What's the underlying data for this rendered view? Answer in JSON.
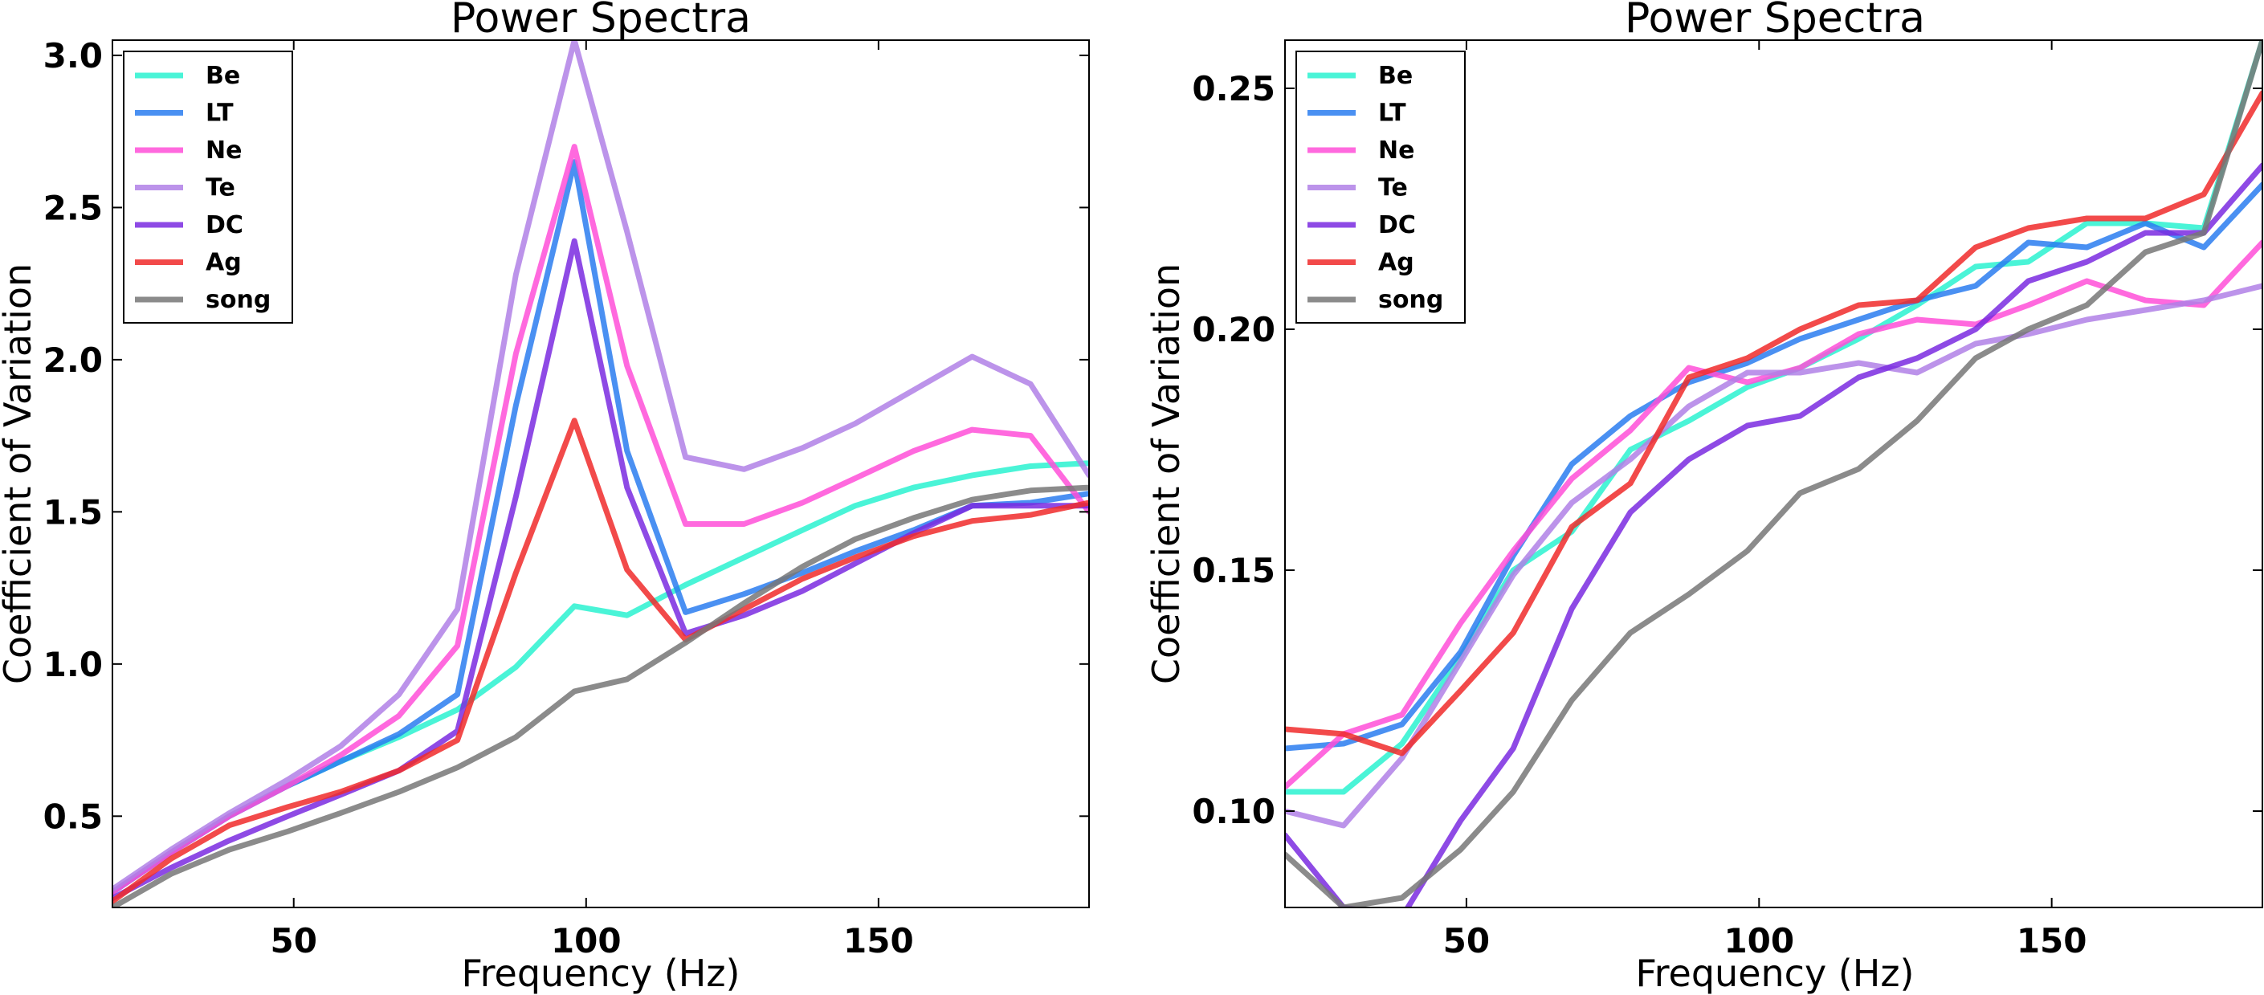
{
  "chart_data": [
    {
      "type": "line",
      "title": "Power Spectra",
      "xlabel": "Frequency (Hz)",
      "ylabel": "Coefficient of Variation",
      "xlim": [
        19,
        186
      ],
      "ylim": [
        0.2,
        3.05
      ],
      "xticks": [
        50,
        100,
        150
      ],
      "xtick_labels": [
        "50",
        "100",
        "150"
      ],
      "yticks": [
        0.5,
        1.0,
        1.5,
        2.0,
        2.5,
        3.0
      ],
      "ytick_labels": [
        "0.5",
        "1.0",
        "1.5",
        "2.0",
        "2.5",
        "3.0"
      ],
      "legend_position": "top-left",
      "x": [
        19,
        29,
        39,
        49,
        58,
        68,
        78,
        88,
        98,
        107,
        117,
        127,
        137,
        146,
        156,
        166,
        176,
        186
      ],
      "series": [
        {
          "name": "Be",
          "color": "#2af2d0",
          "values": [
            0.25,
            0.38,
            0.5,
            0.6,
            0.68,
            0.76,
            0.85,
            0.99,
            1.19,
            1.16,
            1.26,
            1.35,
            1.44,
            1.52,
            1.58,
            1.62,
            1.65,
            1.66
          ]
        },
        {
          "name": "LT",
          "color": "#2a7df0",
          "values": [
            0.25,
            0.38,
            0.5,
            0.6,
            0.68,
            0.77,
            0.9,
            1.85,
            2.65,
            1.7,
            1.17,
            1.23,
            1.3,
            1.37,
            1.44,
            1.52,
            1.53,
            1.56
          ]
        },
        {
          "name": "Ne",
          "color": "#ff4fd8",
          "values": [
            0.25,
            0.38,
            0.5,
            0.6,
            0.7,
            0.83,
            1.06,
            2.02,
            2.7,
            1.98,
            1.46,
            1.46,
            1.53,
            1.61,
            1.7,
            1.77,
            1.75,
            1.5
          ]
        },
        {
          "name": "Te",
          "color": "#b080e6",
          "values": [
            0.26,
            0.39,
            0.51,
            0.62,
            0.73,
            0.9,
            1.18,
            2.28,
            3.05,
            2.42,
            1.68,
            1.64,
            1.71,
            1.79,
            1.9,
            2.01,
            1.92,
            1.62
          ]
        },
        {
          "name": "DC",
          "color": "#7a2ae0",
          "values": [
            0.23,
            0.33,
            0.42,
            0.5,
            0.57,
            0.65,
            0.78,
            1.55,
            2.39,
            1.58,
            1.1,
            1.16,
            1.24,
            1.33,
            1.43,
            1.52,
            1.52,
            1.52
          ]
        },
        {
          "name": "Ag",
          "color": "#f02a2a",
          "values": [
            0.22,
            0.36,
            0.47,
            0.53,
            0.58,
            0.65,
            0.75,
            1.3,
            1.8,
            1.31,
            1.08,
            1.18,
            1.28,
            1.35,
            1.42,
            1.47,
            1.49,
            1.53
          ]
        },
        {
          "name": "song",
          "color": "#777777",
          "values": [
            0.2,
            0.31,
            0.39,
            0.45,
            0.51,
            0.58,
            0.66,
            0.76,
            0.91,
            0.95,
            1.07,
            1.2,
            1.32,
            1.41,
            1.48,
            1.54,
            1.57,
            1.58
          ]
        }
      ]
    },
    {
      "type": "line",
      "title": "Power Spectra",
      "xlabel": "Frequency (Hz)",
      "ylabel": "Coefficient of Variation",
      "xlim": [
        19,
        186
      ],
      "ylim": [
        0.08,
        0.26
      ],
      "xticks": [
        50,
        100,
        150
      ],
      "xtick_labels": [
        "50",
        "100",
        "150"
      ],
      "yticks": [
        0.1,
        0.15,
        0.2,
        0.25
      ],
      "ytick_labels": [
        "0.10",
        "0.15",
        "0.20",
        "0.25"
      ],
      "legend_position": "top-left",
      "x": [
        19,
        29,
        39,
        49,
        58,
        68,
        78,
        88,
        98,
        107,
        117,
        127,
        137,
        146,
        156,
        166,
        176,
        186
      ],
      "series": [
        {
          "name": "Be",
          "color": "#2af2d0",
          "values": [
            0.104,
            0.104,
            0.114,
            0.132,
            0.15,
            0.158,
            0.175,
            0.181,
            0.188,
            0.192,
            0.198,
            0.205,
            0.213,
            0.214,
            0.222,
            0.222,
            0.221,
            0.26
          ]
        },
        {
          "name": "LT",
          "color": "#2a7df0",
          "values": [
            0.113,
            0.114,
            0.118,
            0.133,
            0.153,
            0.172,
            0.182,
            0.189,
            0.193,
            0.198,
            0.202,
            0.206,
            0.209,
            0.218,
            0.217,
            0.222,
            0.217,
            0.23
          ]
        },
        {
          "name": "Ne",
          "color": "#ff4fd8",
          "values": [
            0.105,
            0.116,
            0.12,
            0.139,
            0.154,
            0.169,
            0.179,
            0.192,
            0.189,
            0.192,
            0.199,
            0.202,
            0.201,
            0.205,
            0.21,
            0.206,
            0.205,
            0.218
          ]
        },
        {
          "name": "Te",
          "color": "#b080e6",
          "values": [
            0.1,
            0.097,
            0.111,
            0.131,
            0.149,
            0.164,
            0.173,
            0.184,
            0.191,
            0.191,
            0.193,
            0.191,
            0.197,
            0.199,
            0.202,
            0.204,
            0.206,
            0.209
          ]
        },
        {
          "name": "DC",
          "color": "#7a2ae0",
          "values": [
            0.095,
            0.08,
            0.078,
            0.098,
            0.113,
            0.142,
            0.162,
            0.173,
            0.18,
            0.182,
            0.19,
            0.194,
            0.2,
            0.21,
            0.214,
            0.22,
            0.22,
            0.234
          ]
        },
        {
          "name": "Ag",
          "color": "#f02a2a",
          "values": [
            0.117,
            0.116,
            0.112,
            0.125,
            0.137,
            0.159,
            0.168,
            0.19,
            0.194,
            0.2,
            0.205,
            0.206,
            0.217,
            0.221,
            0.223,
            0.223,
            0.228,
            0.249
          ]
        },
        {
          "name": "song",
          "color": "#777777",
          "values": [
            0.091,
            0.08,
            0.082,
            0.092,
            0.104,
            0.123,
            0.137,
            0.145,
            0.154,
            0.166,
            0.171,
            0.181,
            0.194,
            0.2,
            0.205,
            0.216,
            0.22,
            0.26
          ]
        }
      ]
    }
  ]
}
